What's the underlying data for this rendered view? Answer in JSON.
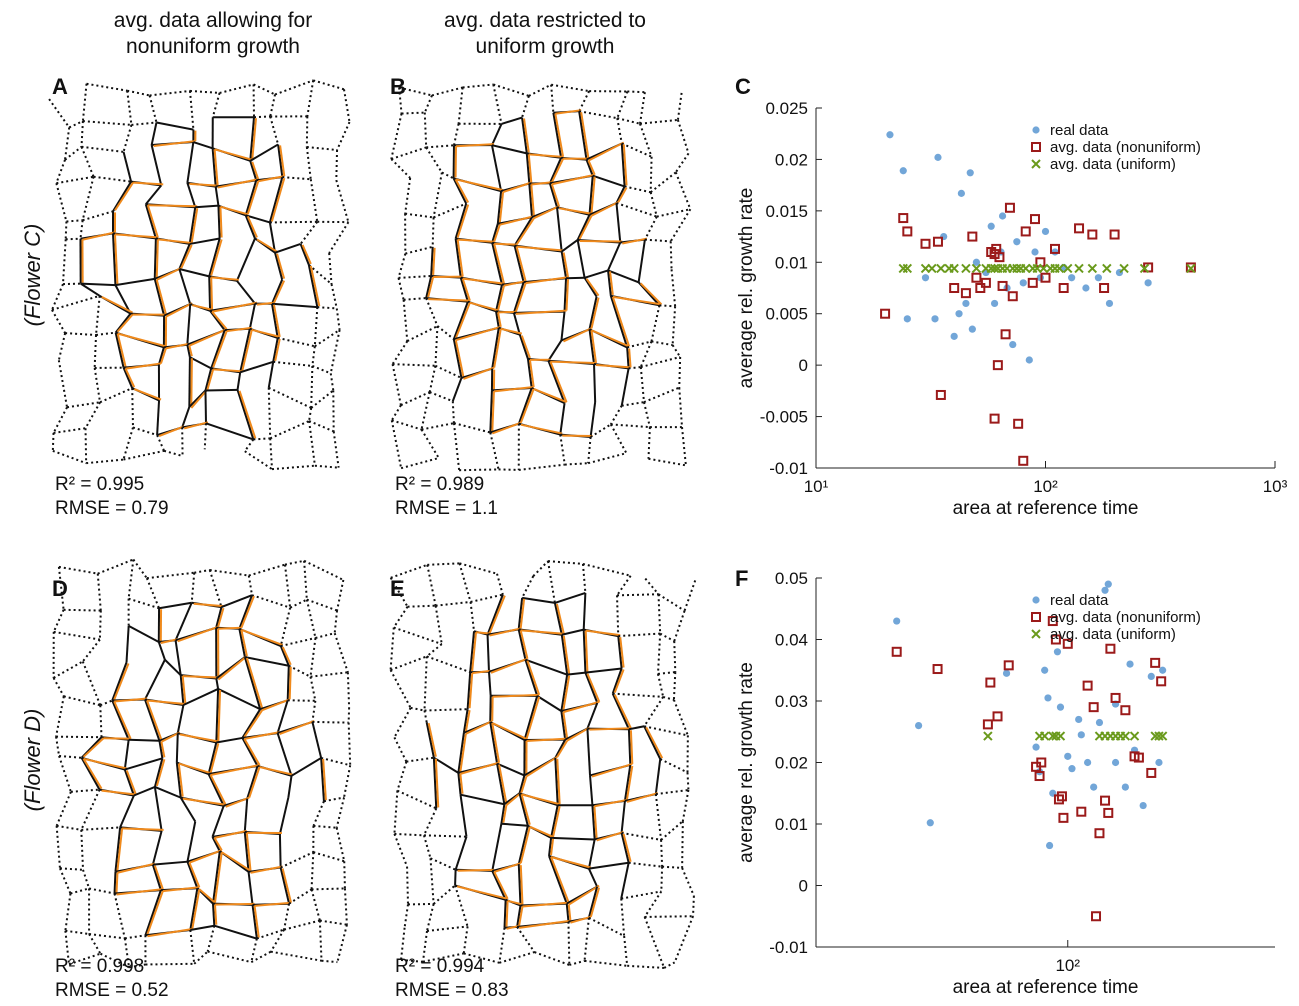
{
  "columns": [
    [
      "avg. data allowing for",
      "nonuniform growth"
    ],
    [
      "avg. data restricted to",
      "uniform growth"
    ]
  ],
  "rows": [
    "(Flower C)",
    "(Flower D)"
  ],
  "panels": [
    {
      "letter": "A",
      "stats": [
        "R² = 0.995",
        "RMSE = 0.79"
      ]
    },
    {
      "letter": "B",
      "stats": [
        "R² = 0.989",
        "RMSE = 1.1"
      ]
    },
    {
      "letter": "D",
      "stats": [
        "R² = 0.998",
        "RMSE = 0.52"
      ]
    },
    {
      "letter": "E",
      "stats": [
        "R² = 0.994",
        "RMSE = 0.83"
      ]
    }
  ],
  "chart_data": [
    {
      "type": "scatter",
      "panel": "C",
      "xlabel": "area at reference time",
      "ylabel": "average rel. growth rate",
      "xscale": "log",
      "xlim": [
        10,
        1000
      ],
      "xticks": [
        {
          "value": 10,
          "label": "10¹"
        },
        {
          "value": 100,
          "label": "10²"
        },
        {
          "value": 1000,
          "label": "10³"
        }
      ],
      "ylim": [
        -0.01,
        0.025
      ],
      "yticks": [
        -0.01,
        -0.005,
        0,
        0.005,
        0.01,
        0.015,
        0.02,
        0.025
      ],
      "legend": "upper right",
      "series": [
        {
          "name": "real data",
          "color": "#72a6d8",
          "marker": "circle",
          "x": [
            21,
            24,
            34,
            43,
            47,
            25,
            33,
            40,
            42,
            45,
            48,
            55,
            58,
            60,
            65,
            68,
            72,
            75,
            80,
            85,
            90,
            95,
            100,
            110,
            120,
            130,
            150,
            170,
            190,
            210,
            280,
            50,
            36,
            30,
            64
          ],
          "values": [
            0.0224,
            0.0189,
            0.0202,
            0.0167,
            0.0187,
            0.0045,
            0.0045,
            0.0028,
            0.005,
            0.006,
            0.0035,
            0.009,
            0.0135,
            0.006,
            0.0145,
            0.0075,
            0.002,
            0.012,
            0.008,
            0.0005,
            0.011,
            0.0085,
            0.013,
            0.011,
            0.0095,
            0.0085,
            0.0075,
            0.0085,
            0.006,
            0.009,
            0.008,
            0.01,
            0.0125,
            0.0085,
            0.011
          ]
        },
        {
          "name": "avg. data (nonuniform)",
          "color": "#9b1a1a",
          "marker": "square",
          "x": [
            20,
            24,
            25,
            30,
            34,
            35,
            40,
            45,
            48,
            50,
            52,
            55,
            58,
            60,
            61,
            62,
            60,
            63,
            67,
            70,
            72,
            76,
            80,
            82,
            88,
            95,
            100,
            110,
            120,
            140,
            160,
            180,
            200,
            280,
            430,
            65,
            90
          ],
          "values": [
            0.005,
            0.0143,
            0.013,
            0.0118,
            0.012,
            -0.0029,
            0.0075,
            0.007,
            0.0125,
            0.0085,
            0.0075,
            0.008,
            0.011,
            0.0108,
            0.0113,
            0.0,
            -0.0052,
            0.0105,
            0.003,
            0.0153,
            0.0067,
            -0.0057,
            -0.0093,
            0.013,
            0.008,
            0.01,
            0.0085,
            0.0113,
            0.0075,
            0.0133,
            0.0127,
            0.0075,
            0.0127,
            0.0095,
            0.0095,
            0.0077,
            0.0142
          ]
        },
        {
          "name": "avg. data (uniform)",
          "color": "#6a9a1c",
          "marker": "cross",
          "x": [
            24,
            25,
            30,
            32,
            35,
            38,
            40,
            45,
            50,
            55,
            58,
            60,
            62,
            65,
            68,
            72,
            75,
            78,
            82,
            88,
            92,
            98,
            105,
            110,
            115,
            125,
            140,
            160,
            185,
            220,
            270,
            430
          ],
          "values": [
            0.0094,
            0.0094,
            0.0094,
            0.0094,
            0.0094,
            0.0094,
            0.0094,
            0.0094,
            0.0094,
            0.0094,
            0.0094,
            0.0094,
            0.0094,
            0.0094,
            0.0094,
            0.0094,
            0.0094,
            0.0094,
            0.0094,
            0.0094,
            0.0094,
            0.0094,
            0.0094,
            0.0094,
            0.0094,
            0.0094,
            0.0094,
            0.0094,
            0.0094,
            0.0094,
            0.0094,
            0.0094
          ]
        }
      ]
    },
    {
      "type": "scatter",
      "panel": "F",
      "xlabel": "area at reference time",
      "ylabel": "average rel. growth rate",
      "xscale": "log",
      "xlim": [
        17,
        430
      ],
      "xticks": [
        {
          "value": 100,
          "label": "10²"
        }
      ],
      "ylim": [
        -0.01,
        0.05
      ],
      "yticks": [
        -0.01,
        0,
        0.01,
        0.02,
        0.03,
        0.04,
        0.05
      ],
      "legend": "upper right",
      "series": [
        {
          "name": "real data",
          "color": "#72a6d8",
          "marker": "circle",
          "x": [
            30,
            35,
            38,
            65,
            80,
            85,
            88,
            90,
            93,
            95,
            100,
            103,
            108,
            115,
            120,
            130,
            133,
            140,
            150,
            155,
            160,
            170,
            180,
            190,
            195,
            82,
            87,
            110,
            140,
            125
          ],
          "values": [
            0.043,
            0.026,
            0.0102,
            0.0345,
            0.0225,
            0.035,
            0.0065,
            0.015,
            0.038,
            0.029,
            0.021,
            0.019,
            0.027,
            0.02,
            0.016,
            0.048,
            0.049,
            0.02,
            0.016,
            0.036,
            0.022,
            0.013,
            0.034,
            0.02,
            0.035,
            0.0185,
            0.0305,
            0.0245,
            0.0295,
            0.0265
          ]
        },
        {
          "name": "avg. data (nonuniform)",
          "color": "#9b1a1a",
          "marker": "square",
          "x": [
            30,
            40,
            57,
            58,
            61,
            66,
            80,
            82,
            83,
            90,
            92,
            94,
            96,
            97,
            100,
            110,
            115,
            120,
            122,
            125,
            130,
            135,
            140,
            150,
            160,
            165,
            180,
            185,
            193,
            133
          ],
          "values": [
            0.038,
            0.0352,
            0.0262,
            0.033,
            0.0275,
            0.0358,
            0.0193,
            0.0178,
            0.02,
            0.043,
            0.04,
            0.014,
            0.0145,
            0.011,
            0.0393,
            0.012,
            0.0325,
            0.029,
            -0.005,
            0.0085,
            0.0138,
            0.0385,
            0.0305,
            0.0285,
            0.021,
            0.0208,
            0.0183,
            0.0362,
            0.0332,
            0.0118
          ]
        },
        {
          "name": "avg. data (uniform)",
          "color": "#6a9a1c",
          "marker": "cross",
          "x": [
            57,
            82,
            85,
            90,
            92,
            95,
            125,
            130,
            135,
            140,
            145,
            150,
            160,
            185,
            190,
            195
          ],
          "values": [
            0.0243,
            0.0243,
            0.0243,
            0.0243,
            0.0243,
            0.0243,
            0.0243,
            0.0243,
            0.0243,
            0.0243,
            0.0243,
            0.0243,
            0.0243,
            0.0243,
            0.0243,
            0.0243
          ]
        }
      ]
    }
  ]
}
